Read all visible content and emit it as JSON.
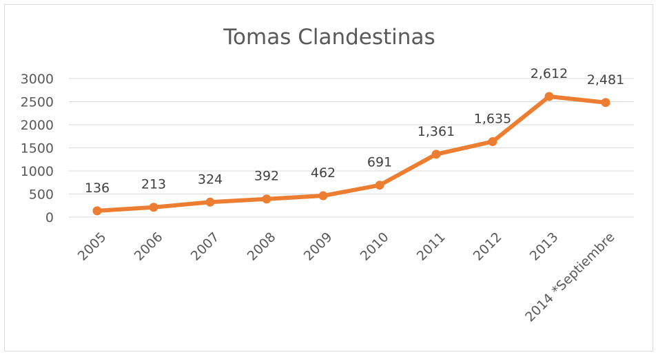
{
  "chart_data": {
    "type": "line",
    "title": "Tomas Clandestinas",
    "xlabel": "",
    "ylabel": "",
    "categories": [
      "2005",
      "2006",
      "2007",
      "2008",
      "2009",
      "2010",
      "2011",
      "2012",
      "2013",
      "2014 *Septiembre"
    ],
    "series": [
      {
        "values": [
          136,
          213,
          324,
          392,
          462,
          691,
          1361,
          1635,
          2612,
          2481
        ],
        "data_labels": [
          "136",
          "213",
          "324",
          "392",
          "462",
          "691",
          "1,361",
          "1,635",
          "2,612",
          "2,481"
        ],
        "color": "#ed7d31"
      }
    ],
    "y_ticks": [
      "0",
      "500",
      "1000",
      "1500",
      "2000",
      "2500",
      "3000"
    ],
    "ylim": [
      0,
      3000
    ],
    "grid": true,
    "legend": "none"
  }
}
